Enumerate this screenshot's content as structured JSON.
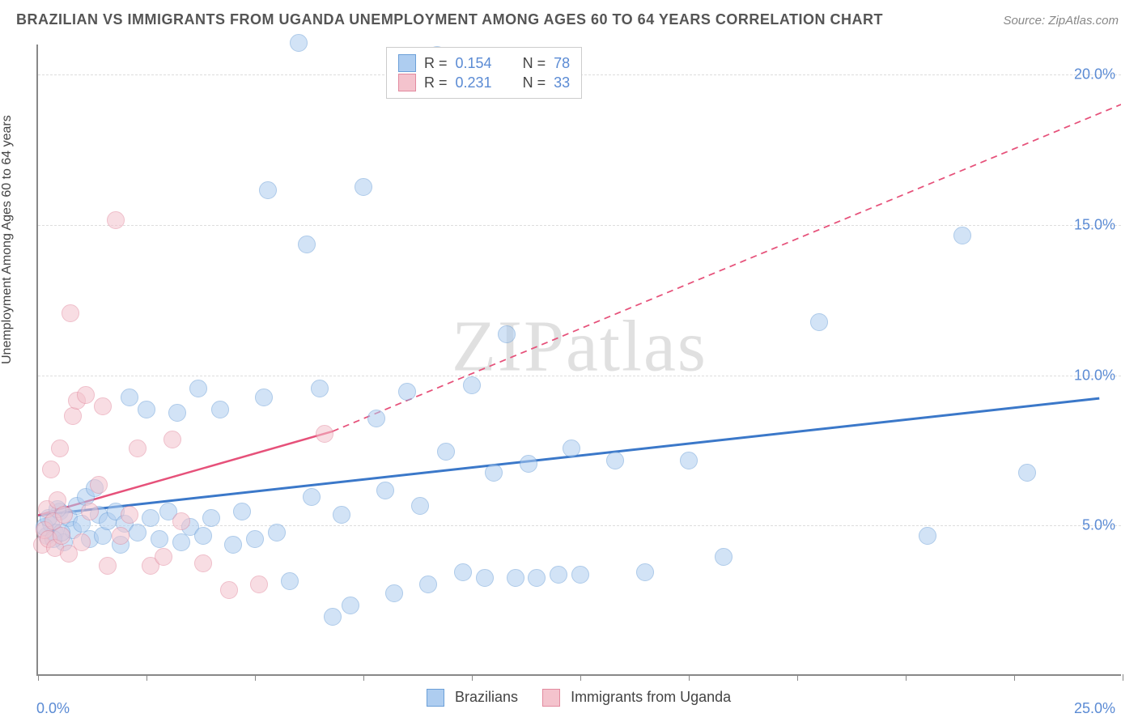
{
  "title": "BRAZILIAN VS IMMIGRANTS FROM UGANDA UNEMPLOYMENT AMONG AGES 60 TO 64 YEARS CORRELATION CHART",
  "source": "Source: ZipAtlas.com",
  "watermark": "ZIPatlas",
  "ylabel": "Unemployment Among Ages 60 to 64 years",
  "chart": {
    "type": "scatter",
    "xlim": [
      0,
      25
    ],
    "ylim": [
      0,
      21
    ],
    "x_axis_labels": {
      "left": "0.0%",
      "right": "25.0%"
    },
    "x_ticks": [
      0,
      2.5,
      5,
      7.5,
      10,
      12.5,
      15,
      17.5,
      20,
      22.5,
      25
    ],
    "y_gridlines": [
      {
        "value": 5.0,
        "label": "5.0%"
      },
      {
        "value": 10.0,
        "label": "10.0%"
      },
      {
        "value": 15.0,
        "label": "15.0%"
      },
      {
        "value": 20.0,
        "label": "20.0%"
      }
    ],
    "background_color": "#ffffff",
    "grid_color": "#dddddd",
    "axis_color": "#888888",
    "label_color": "#5b8bd4",
    "label_fontsize": 18,
    "title_color": "#555555",
    "title_fontsize": 18,
    "marker_radius": 11,
    "marker_opacity": 0.55
  },
  "series": [
    {
      "name": "Brazilians",
      "fill": "#aecdf0",
      "stroke": "#6b9fd8",
      "r_value": "0.154",
      "n_value": "78",
      "trendline": {
        "solid": {
          "x1": 0,
          "y1": 5.3,
          "x2": 24.5,
          "y2": 9.2
        }
      },
      "trend_color": "#3b78c9",
      "trend_width": 3,
      "points": [
        [
          0.2,
          4.6
        ],
        [
          0.3,
          5.0
        ],
        [
          0.4,
          4.7
        ],
        [
          0.5,
          5.4
        ],
        [
          0.6,
          4.4
        ],
        [
          0.7,
          5.2
        ],
        [
          0.8,
          4.8
        ],
        [
          0.9,
          5.6
        ],
        [
          1.0,
          5.0
        ],
        [
          1.1,
          5.9
        ],
        [
          1.2,
          4.5
        ],
        [
          1.3,
          6.2
        ],
        [
          1.4,
          5.3
        ],
        [
          1.5,
          4.6
        ],
        [
          1.6,
          5.1
        ],
        [
          1.8,
          5.4
        ],
        [
          1.9,
          4.3
        ],
        [
          2.0,
          5.0
        ],
        [
          2.1,
          9.2
        ],
        [
          2.3,
          4.7
        ],
        [
          2.5,
          8.8
        ],
        [
          2.6,
          5.2
        ],
        [
          2.8,
          4.5
        ],
        [
          3.0,
          5.4
        ],
        [
          3.2,
          8.7
        ],
        [
          3.3,
          4.4
        ],
        [
          3.5,
          4.9
        ],
        [
          3.7,
          9.5
        ],
        [
          3.8,
          4.6
        ],
        [
          4.0,
          5.2
        ],
        [
          4.2,
          8.8
        ],
        [
          4.5,
          4.3
        ],
        [
          4.7,
          5.4
        ],
        [
          5.0,
          4.5
        ],
        [
          5.2,
          9.2
        ],
        [
          5.3,
          16.1
        ],
        [
          5.5,
          4.7
        ],
        [
          5.8,
          3.1
        ],
        [
          6.0,
          21.0
        ],
        [
          6.2,
          14.3
        ],
        [
          6.3,
          5.9
        ],
        [
          6.5,
          9.5
        ],
        [
          6.8,
          1.9
        ],
        [
          7.0,
          5.3
        ],
        [
          7.2,
          2.3
        ],
        [
          7.5,
          16.2
        ],
        [
          7.8,
          8.5
        ],
        [
          8.0,
          6.1
        ],
        [
          8.2,
          2.7
        ],
        [
          8.5,
          9.4
        ],
        [
          8.8,
          5.6
        ],
        [
          9.0,
          3.0
        ],
        [
          9.2,
          20.6
        ],
        [
          9.4,
          7.4
        ],
        [
          9.8,
          3.4
        ],
        [
          10.0,
          9.6
        ],
        [
          10.3,
          3.2
        ],
        [
          10.5,
          6.7
        ],
        [
          10.8,
          11.3
        ],
        [
          11.0,
          3.2
        ],
        [
          11.3,
          7.0
        ],
        [
          11.5,
          3.2
        ],
        [
          12.0,
          3.3
        ],
        [
          12.3,
          7.5
        ],
        [
          12.5,
          3.3
        ],
        [
          13.3,
          7.1
        ],
        [
          14.0,
          3.4
        ],
        [
          15.0,
          7.1
        ],
        [
          15.8,
          3.9
        ],
        [
          18.0,
          11.7
        ],
        [
          20.5,
          4.6
        ],
        [
          21.3,
          14.6
        ],
        [
          22.8,
          6.7
        ],
        [
          0.15,
          4.9
        ],
        [
          0.25,
          5.2
        ],
        [
          0.35,
          4.5
        ],
        [
          0.45,
          5.5
        ],
        [
          0.55,
          4.7
        ]
      ]
    },
    {
      "name": "Immigrants from Uganda",
      "fill": "#f4c3cd",
      "stroke": "#e28a9f",
      "r_value": "0.231",
      "n_value": "33",
      "trendline": {
        "solid": {
          "x1": 0,
          "y1": 5.3,
          "x2": 6.8,
          "y2": 8.1
        },
        "dashed": {
          "x1": 6.8,
          "y1": 8.1,
          "x2": 25,
          "y2": 19.0
        }
      },
      "trend_color": "#e6517a",
      "trend_width": 2.5,
      "points": [
        [
          0.1,
          4.3
        ],
        [
          0.15,
          4.8
        ],
        [
          0.2,
          5.5
        ],
        [
          0.25,
          4.5
        ],
        [
          0.3,
          6.8
        ],
        [
          0.35,
          5.1
        ],
        [
          0.4,
          4.2
        ],
        [
          0.45,
          5.8
        ],
        [
          0.5,
          7.5
        ],
        [
          0.55,
          4.6
        ],
        [
          0.6,
          5.3
        ],
        [
          0.7,
          4.0
        ],
        [
          0.75,
          12.0
        ],
        [
          0.8,
          8.6
        ],
        [
          0.9,
          9.1
        ],
        [
          1.0,
          4.4
        ],
        [
          1.1,
          9.3
        ],
        [
          1.2,
          5.4
        ],
        [
          1.4,
          6.3
        ],
        [
          1.5,
          8.9
        ],
        [
          1.6,
          3.6
        ],
        [
          1.8,
          15.1
        ],
        [
          1.9,
          4.6
        ],
        [
          2.1,
          5.3
        ],
        [
          2.3,
          7.5
        ],
        [
          2.6,
          3.6
        ],
        [
          2.9,
          3.9
        ],
        [
          3.1,
          7.8
        ],
        [
          3.3,
          5.1
        ],
        [
          3.8,
          3.7
        ],
        [
          4.4,
          2.8
        ],
        [
          5.1,
          3.0
        ],
        [
          6.6,
          8.0
        ]
      ]
    }
  ],
  "legend_top": {
    "rows": [
      {
        "swatch_fill": "#aecdf0",
        "swatch_stroke": "#6b9fd8",
        "r_label": "R =",
        "r_value": "0.154",
        "n_label": "N =",
        "n_value": "78"
      },
      {
        "swatch_fill": "#f4c3cd",
        "swatch_stroke": "#e28a9f",
        "r_label": "R =",
        "r_value": "0.231",
        "n_label": "N =",
        "n_value": "33"
      }
    ]
  },
  "legend_bottom": {
    "items": [
      {
        "swatch_fill": "#aecdf0",
        "swatch_stroke": "#6b9fd8",
        "label": "Brazilians"
      },
      {
        "swatch_fill": "#f4c3cd",
        "swatch_stroke": "#e28a9f",
        "label": "Immigrants from Uganda"
      }
    ]
  }
}
